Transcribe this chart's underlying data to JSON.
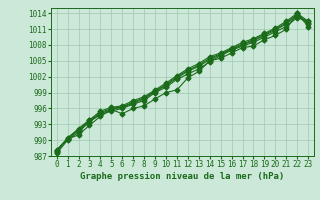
{
  "x": [
    0,
    1,
    2,
    3,
    4,
    5,
    6,
    7,
    8,
    9,
    10,
    11,
    12,
    13,
    14,
    15,
    16,
    17,
    18,
    19,
    20,
    21,
    22,
    23
  ],
  "series": [
    [
      988.0,
      990.2,
      991.0,
      992.8,
      994.5,
      995.8,
      995.0,
      996.0,
      996.5,
      997.8,
      999.0,
      999.5,
      1001.8,
      1003.0,
      1005.0,
      1005.5,
      1006.5,
      1007.5,
      1007.8,
      1009.0,
      1009.8,
      1011.0,
      1014.0,
      1011.5
    ],
    [
      987.5,
      990.0,
      991.5,
      993.5,
      994.8,
      995.5,
      996.0,
      996.8,
      997.5,
      999.0,
      1000.0,
      1001.5,
      1002.5,
      1003.5,
      1004.8,
      1006.0,
      1007.0,
      1007.8,
      1008.5,
      1009.5,
      1010.5,
      1011.5,
      1013.2,
      1012.5
    ],
    [
      987.8,
      990.5,
      992.0,
      993.8,
      995.0,
      995.8,
      996.2,
      997.0,
      997.8,
      999.2,
      1000.3,
      1001.8,
      1003.0,
      1004.0,
      1005.2,
      1006.2,
      1007.2,
      1008.0,
      1008.8,
      1009.8,
      1010.8,
      1012.0,
      1013.5,
      1012.0
    ],
    [
      988.0,
      990.2,
      991.8,
      993.5,
      995.2,
      996.0,
      996.3,
      997.2,
      998.0,
      999.3,
      1000.5,
      1002.0,
      1003.2,
      1004.2,
      1005.5,
      1006.3,
      1007.3,
      1008.2,
      1009.0,
      1010.0,
      1011.0,
      1012.2,
      1013.8,
      1012.2
    ],
    [
      988.2,
      990.3,
      992.2,
      993.8,
      995.5,
      996.2,
      996.5,
      997.5,
      998.2,
      999.5,
      1000.8,
      1002.2,
      1003.5,
      1004.5,
      1005.8,
      1006.5,
      1007.5,
      1008.5,
      1009.2,
      1010.2,
      1011.2,
      1012.5,
      1014.0,
      1012.5
    ]
  ],
  "ylim": [
    987,
    1015
  ],
  "xlim": [
    -0.5,
    23.5
  ],
  "yticks": [
    987,
    990,
    993,
    996,
    999,
    1002,
    1005,
    1008,
    1011,
    1014
  ],
  "xticks": [
    0,
    1,
    2,
    3,
    4,
    5,
    6,
    7,
    8,
    9,
    10,
    11,
    12,
    13,
    14,
    15,
    16,
    17,
    18,
    19,
    20,
    21,
    22,
    23
  ],
  "xlabel": "Graphe pression niveau de la mer (hPa)",
  "bg_color": "#cce8d8",
  "line_color": "#1a6b1a",
  "grid_color": "#a0c8b0",
  "marker": "D",
  "marker_size": 2.5,
  "line_width": 0.8,
  "font_size_label": 6.5,
  "font_size_tick": 5.5
}
